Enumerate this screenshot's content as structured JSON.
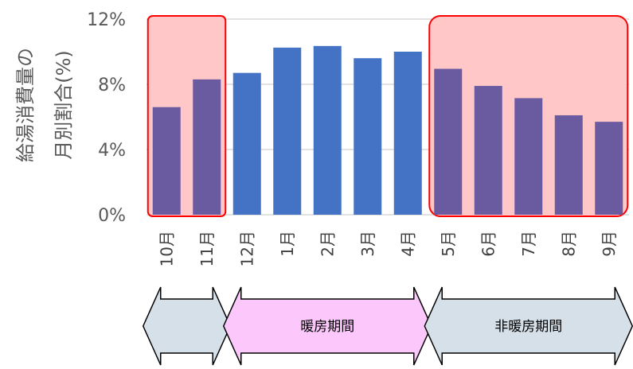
{
  "chart_data": {
    "type": "bar",
    "ylabel_line1": "給湯消費量の",
    "ylabel_line2": "月別割合(%)",
    "ylim": [
      0,
      12
    ],
    "yticks": [
      0,
      4,
      8,
      12
    ],
    "ytick_labels": [
      "0%",
      "4%",
      "8%",
      "12%"
    ],
    "grid": true,
    "categories": [
      "10月",
      "11月",
      "12月",
      "1月",
      "2月",
      "3月",
      "4月",
      "5月",
      "6月",
      "7月",
      "8月",
      "9月"
    ],
    "values": [
      6.6,
      8.3,
      8.7,
      10.25,
      10.35,
      9.6,
      10.0,
      8.95,
      7.9,
      7.15,
      6.1,
      5.7
    ],
    "highlight_groups": [
      {
        "start": 0,
        "end": 1
      },
      {
        "start": 7,
        "end": 11
      }
    ]
  },
  "periods": [
    {
      "label": "",
      "start": 0,
      "end": 1,
      "color": "#d6e0e8"
    },
    {
      "label": "暖房期間",
      "start": 2,
      "end": 6,
      "color": "#fcc8fc"
    },
    {
      "label": "非暖房期間",
      "start": 7,
      "end": 11,
      "color": "#d6e0e8"
    }
  ],
  "colors": {
    "bar": "#4472c4",
    "bar_highlight": "#6a5aa0",
    "highlight_fill": "#ffc7c7",
    "highlight_border": "#ff0000",
    "grid": "#d9d9d9"
  }
}
